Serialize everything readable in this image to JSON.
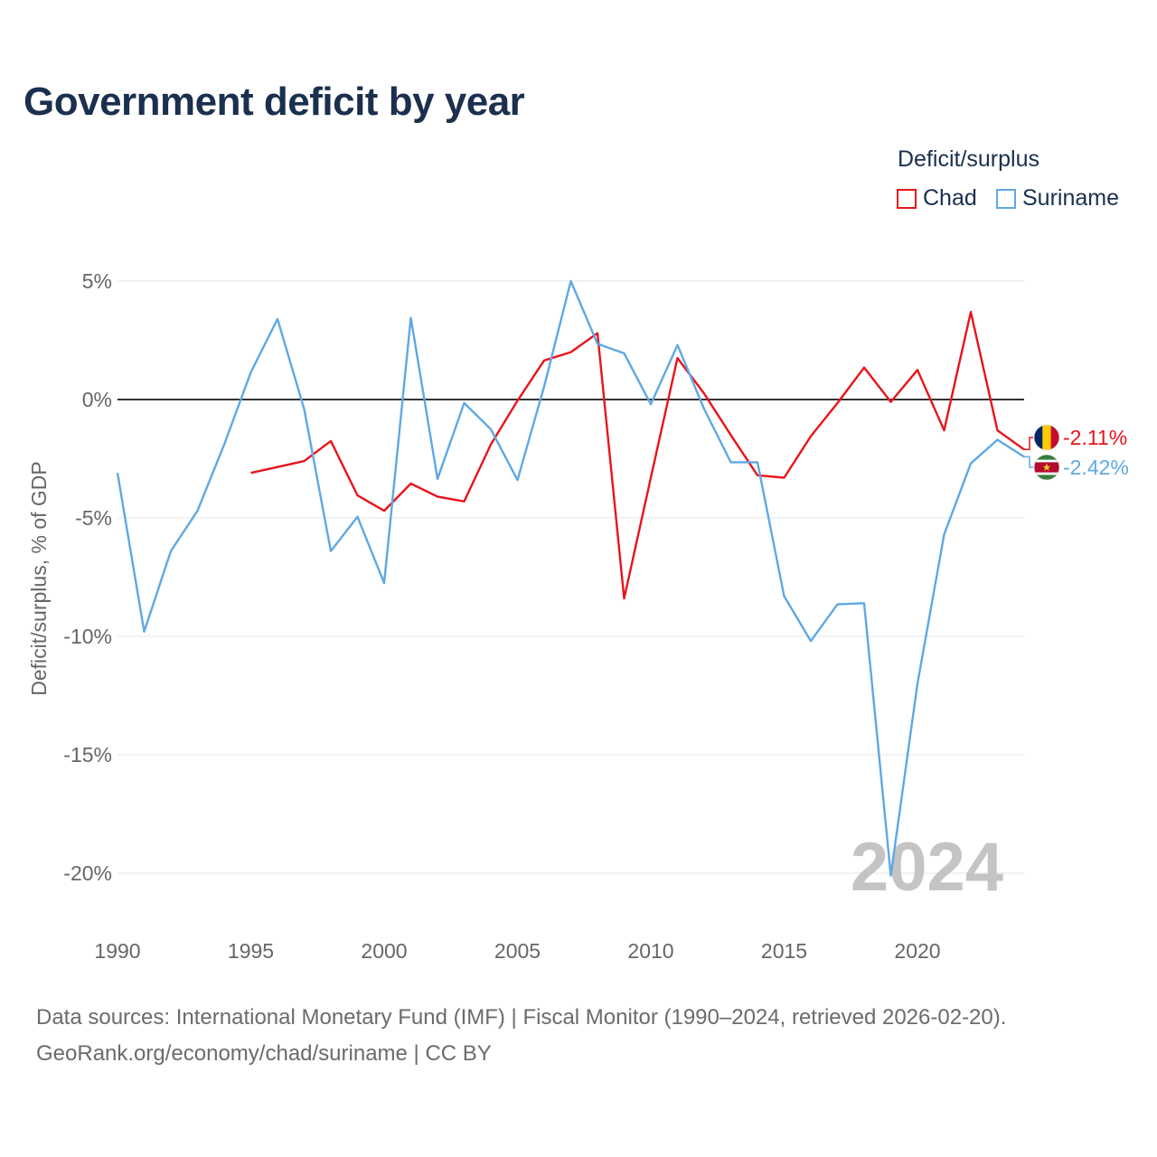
{
  "header": {
    "title": "Government deficit by year"
  },
  "legend": {
    "title": "Deficit/surplus",
    "items": [
      {
        "label": "Chad",
        "color": "#e8141b"
      },
      {
        "label": "Suriname",
        "color": "#5fa8e4"
      }
    ]
  },
  "chart_data": {
    "type": "line",
    "title": "Government deficit by year",
    "xlabel": "",
    "ylabel": "Deficit/surplus, % of GDP",
    "xlim": [
      1990,
      2024
    ],
    "ylim": [
      -21,
      5.5
    ],
    "x_ticks": [
      1990,
      1995,
      2000,
      2005,
      2010,
      2015,
      2020
    ],
    "x_tick_labels": [
      "1990",
      "1995",
      "2000",
      "2005",
      "2010",
      "2015",
      "2020"
    ],
    "y_ticks": [
      5,
      0,
      -5,
      -10,
      -15,
      -20
    ],
    "y_tick_labels": [
      "5%",
      "0%",
      "-5%",
      "-10%",
      "-15%",
      "-20%"
    ],
    "grid": true,
    "zero_line": true,
    "year_watermark": "2024",
    "series": [
      {
        "name": "Chad",
        "color": "#e8141b",
        "end_label": "-2.11%",
        "flag": "chad-flag",
        "x": [
          1995,
          1996,
          1997,
          1998,
          1999,
          2000,
          2001,
          2002,
          2003,
          2004,
          2005,
          2006,
          2007,
          2008,
          2009,
          2010,
          2011,
          2012,
          2013,
          2014,
          2015,
          2016,
          2017,
          2018,
          2019,
          2020,
          2021,
          2022,
          2023,
          2024
        ],
        "values": [
          -3.1,
          -2.85,
          -2.6,
          -1.75,
          -4.05,
          -4.7,
          -3.55,
          -4.1,
          -4.3,
          -1.9,
          -0.05,
          1.65,
          2.0,
          2.8,
          -8.4,
          -3.3,
          1.75,
          0.25,
          -1.5,
          -3.2,
          -3.3,
          -1.55,
          -0.15,
          1.35,
          -0.1,
          1.25,
          -1.3,
          3.7,
          -1.3,
          -2.11
        ]
      },
      {
        "name": "Suriname",
        "color": "#5fa8e4",
        "end_label": "-2.42%",
        "flag": "suriname-flag",
        "x": [
          1990,
          1991,
          1992,
          1993,
          1994,
          1995,
          1996,
          1997,
          1998,
          1999,
          2000,
          2001,
          2002,
          2003,
          2004,
          2005,
          2006,
          2007,
          2008,
          2009,
          2010,
          2011,
          2012,
          2013,
          2014,
          2015,
          2016,
          2017,
          2018,
          2019,
          2020,
          2021,
          2022,
          2023,
          2024
        ],
        "values": [
          -3.1,
          -9.8,
          -6.4,
          -4.7,
          -1.9,
          1.15,
          3.4,
          -0.4,
          -6.4,
          -4.95,
          -7.75,
          3.45,
          -3.35,
          -0.15,
          -1.25,
          -3.4,
          0.55,
          5.0,
          2.35,
          1.95,
          -0.2,
          2.3,
          -0.4,
          -2.65,
          -2.65,
          -8.3,
          -10.2,
          -8.65,
          -8.6,
          -20.1,
          -12.0,
          -5.7,
          -2.7,
          -1.7,
          -2.42
        ]
      }
    ]
  },
  "footer": {
    "source_line": "Data sources: International Monetary Fund (IMF) | Fiscal Monitor (1990–2024, retrieved 2026-02-20).",
    "credit_line": "GeoRank.org/economy/chad/suriname | CC BY"
  }
}
